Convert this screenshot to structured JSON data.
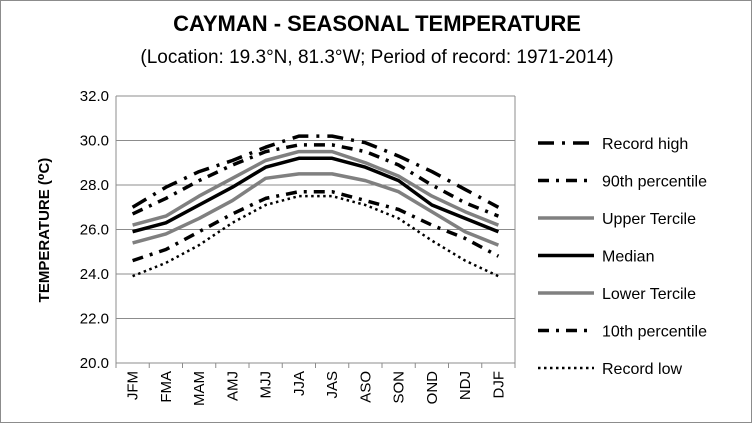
{
  "chart_data": {
    "type": "line",
    "title": "CAYMAN - SEASONAL TEMPERATURE",
    "subtitle": "(Location: 19.3°N, 81.3°W; Period of record: 1971-2014)",
    "ylabel": "TEMPERATURE (⁰C)",
    "xlabel": "",
    "ylim": [
      20.0,
      32.0
    ],
    "y_ticks": [
      "20.0",
      "22.0",
      "24.0",
      "26.0",
      "28.0",
      "30.0",
      "32.0"
    ],
    "grid": "horizontal",
    "legend_position": "right",
    "categories": [
      "JFM",
      "FMA",
      "MAM",
      "AMJ",
      "MJJ",
      "JJA",
      "JAS",
      "ASO",
      "SON",
      "OND",
      "NDJ",
      "DJF"
    ],
    "series": [
      {
        "name": "Record high",
        "color": "#000000",
        "style": "dash-dot-long",
        "values": [
          27.0,
          27.9,
          28.6,
          29.1,
          29.7,
          30.2,
          30.2,
          29.9,
          29.3,
          28.6,
          27.8,
          27.0
        ]
      },
      {
        "name": "90th percentile",
        "color": "#000000",
        "style": "dash-dot",
        "values": [
          26.7,
          27.4,
          28.2,
          28.9,
          29.5,
          29.8,
          29.8,
          29.5,
          28.9,
          28.0,
          27.2,
          26.6
        ]
      },
      {
        "name": "Upper Tercile",
        "color": "#808080",
        "style": "solid",
        "values": [
          26.2,
          26.6,
          27.5,
          28.3,
          29.1,
          29.5,
          29.5,
          29.0,
          28.4,
          27.5,
          26.8,
          26.2
        ]
      },
      {
        "name": "Median",
        "color": "#000000",
        "style": "solid-thick",
        "values": [
          25.9,
          26.3,
          27.1,
          27.9,
          28.8,
          29.2,
          29.2,
          28.8,
          28.2,
          27.1,
          26.5,
          25.9
        ]
      },
      {
        "name": "Lower Tercile",
        "color": "#808080",
        "style": "solid",
        "values": [
          25.4,
          25.8,
          26.5,
          27.3,
          28.3,
          28.5,
          28.5,
          28.2,
          27.7,
          26.8,
          25.9,
          25.3
        ]
      },
      {
        "name": "10th percentile",
        "color": "#000000",
        "style": "dash-dot",
        "values": [
          24.6,
          25.1,
          25.9,
          26.7,
          27.4,
          27.7,
          27.7,
          27.3,
          26.9,
          26.2,
          25.6,
          24.8
        ]
      },
      {
        "name": "Record low",
        "color": "#000000",
        "style": "dotted",
        "values": [
          23.9,
          24.5,
          25.3,
          26.3,
          27.1,
          27.5,
          27.5,
          27.1,
          26.5,
          25.5,
          24.6,
          23.9
        ]
      }
    ]
  }
}
